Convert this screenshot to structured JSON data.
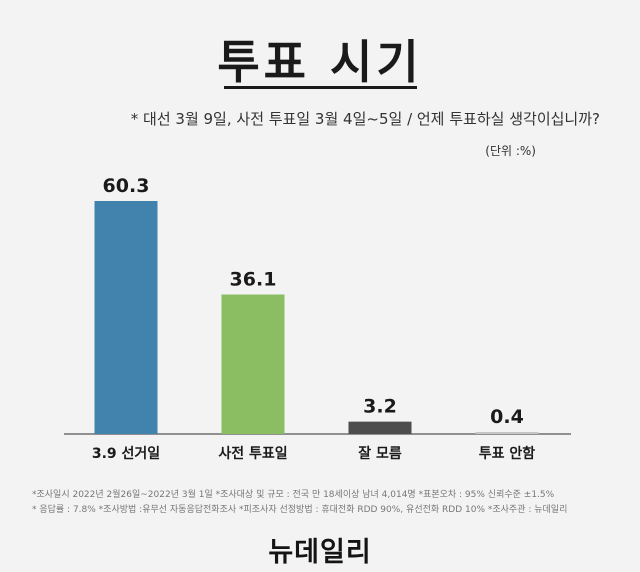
{
  "title": "투표 시기",
  "question": "* 대선 3월 9일, 사전 투표일 3월 4일~5일 / 언제 투표하실 생각이십니까?",
  "unit": "(단위 :%)",
  "chart_data": {
    "type": "bar",
    "categories": [
      "3.9 선거일",
      "사전 투표일",
      "잘 모름",
      "투표 안함"
    ],
    "values": [
      60.3,
      36.1,
      3.2,
      0.4
    ],
    "value_labels": [
      "60.3",
      "36.1",
      "3.2",
      "0.4"
    ],
    "colors": [
      "#4283ad",
      "#8bbe62",
      "#4d4d4d",
      "#c6c6c6"
    ],
    "ylim": [
      0,
      60.3
    ],
    "grid": false,
    "legend": "none"
  },
  "notes": {
    "line1": "*조사일시  2022년 2월26일~2022년 3월 1일  *조사대상 및 규모 : 전국 만 18세이상 남녀 4,014명   *표본오차 : 95% 신뢰수준 ±1.5%",
    "line2": "* 응답률 : 7.8%  *조사방법 :유무선 자동응답전화조사  *피조사자 선정방법 : 휴대전화 RDD  90%, 유선전화 RDD 10%   *조사주관 : 뉴데일리"
  },
  "logo": "뉴데일리"
}
